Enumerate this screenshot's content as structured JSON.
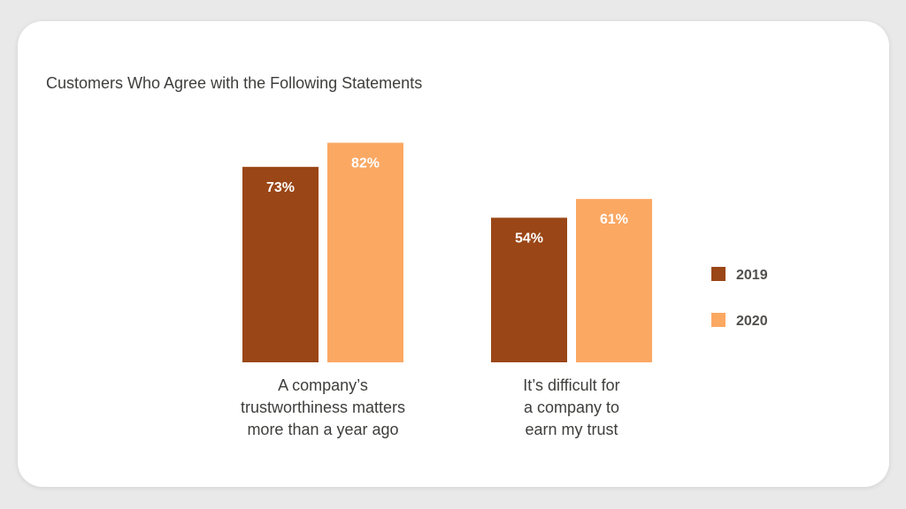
{
  "chart_data": {
    "type": "bar",
    "title": "Customers Who Agree with the Following Statements",
    "categories": [
      [
        "A company’s",
        "trustworthiness matters",
        "more than a year ago"
      ],
      [
        "It’s difficult for",
        "a company to",
        "earn my trust"
      ]
    ],
    "series": [
      {
        "name": "2019",
        "values": [
          73,
          54
        ],
        "color": "#9a4616"
      },
      {
        "name": "2020",
        "values": [
          82,
          61
        ],
        "color": "#fba863"
      }
    ],
    "value_suffix": "%",
    "legend_position": "right",
    "grid": false,
    "ylim": [
      0,
      100
    ]
  }
}
